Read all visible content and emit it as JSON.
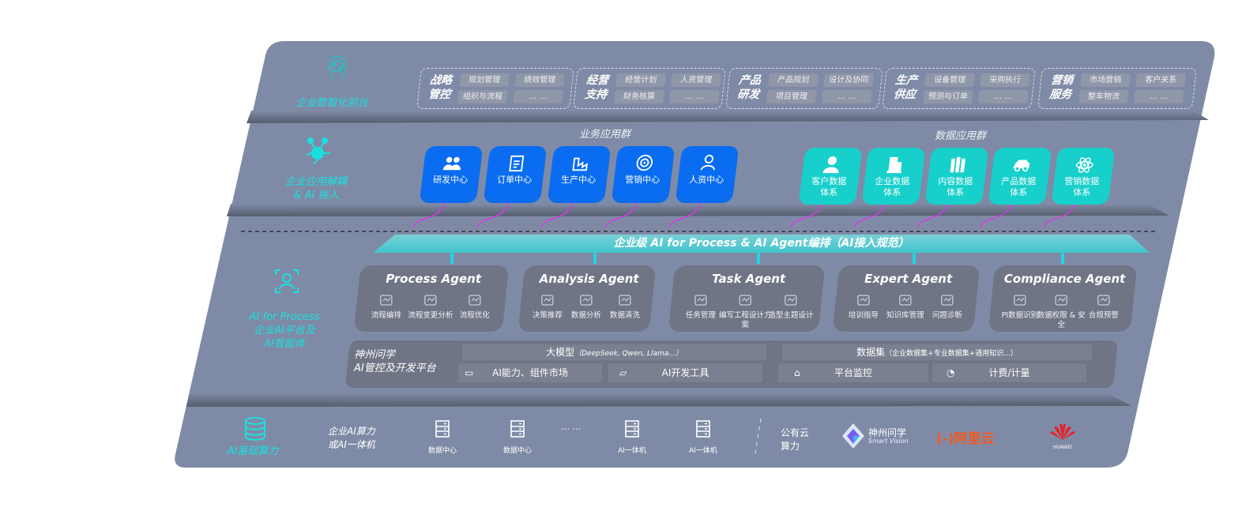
{
  "colors": {
    "panel": "#7f8ba6",
    "band": "#5e6678",
    "blue": "#0a6cf0",
    "teal": "#17cfcb",
    "accent": "#19e0e0",
    "arrow": "#d63be6"
  },
  "layer1": {
    "label": "企业数智化前台",
    "icon": "brain-icon",
    "groups": [
      {
        "title": "战略管控",
        "items": [
          "规划管理",
          "绩效管理",
          "组织与流程",
          "… …"
        ]
      },
      {
        "title": "经营支持",
        "items": [
          "经营计划",
          "人资管理",
          "财务核算",
          "… …"
        ]
      },
      {
        "title": "产品研发",
        "items": [
          "产品规划",
          "设计及协同",
          "项目管理",
          "… …"
        ]
      },
      {
        "title": "生产供应",
        "items": [
          "设备管理",
          "采购执行",
          "预测与订单",
          "… …"
        ]
      },
      {
        "title": "营销服务",
        "items": [
          "市场营销",
          "客户关系",
          "整车物流",
          "… …"
        ]
      }
    ]
  },
  "layer2": {
    "label_line1": "企业应用解耦",
    "label_line2": "& AI 接入",
    "icon": "molecule-icon",
    "business_title": "业务应用群",
    "business_apps": [
      {
        "label": "研发中心",
        "icon": "team-icon"
      },
      {
        "label": "订单中心",
        "icon": "clipboard-icon"
      },
      {
        "label": "生产中心",
        "icon": "production-icon"
      },
      {
        "label": "营销中心",
        "icon": "target-icon"
      },
      {
        "label": "人资中心",
        "icon": "person-icon"
      }
    ],
    "data_title": "数据应用群",
    "data_apps": [
      {
        "label": "客户数据体系",
        "icon": "user-icon"
      },
      {
        "label": "企业数据体系",
        "icon": "building-icon"
      },
      {
        "label": "内容数据体系",
        "icon": "books-icon"
      },
      {
        "label": "产品数据体系",
        "icon": "car-icon"
      },
      {
        "label": "营销数据体系",
        "icon": "atom-icon"
      }
    ]
  },
  "banner": "企业级 AI for Process & AI Agent编排（AI接入规范）",
  "layer3": {
    "label_line1": "AI for Process",
    "label_line2": "企业AI平台及",
    "label_line3": "AI智能体",
    "icon": "face-scan-icon",
    "agents": [
      {
        "title": "Process Agent",
        "features": [
          "流程编排",
          "流程变更分析",
          "流程优化"
        ]
      },
      {
        "title": "Analysis Agent",
        "features": [
          "决策推荐",
          "数据分析",
          "数据清洗"
        ]
      },
      {
        "title": "Task Agent",
        "features": [
          "任务管理",
          "编写工程设计方案",
          "造型主题设计"
        ]
      },
      {
        "title": "Expert Agent",
        "features": [
          "培训指导",
          "知识库管理",
          "问题诊断"
        ]
      },
      {
        "title": "Compliance Agent",
        "features": [
          "PI数据识别",
          "数据权限 & 安全",
          "合规预警"
        ]
      }
    ],
    "platform": {
      "title_line1": "神州问学",
      "title_line2": "AI管控及开发平台",
      "model": "大模型",
      "model_note": "（DeepSeek, Qwen, Llama...）",
      "dataset": "数据集",
      "dataset_note": "（企业数据集+专业数据集+通用知识...）",
      "market": "AI能力、组件市场",
      "devtools": "AI开发工具",
      "monitor": "平台监控",
      "billing": "计费/计量"
    }
  },
  "layer4": {
    "label": "AI基础算力",
    "icon": "database-icon",
    "enterprise_line1": "企业AI算力",
    "enterprise_line2": "或AI一体机",
    "items": [
      "数据中心",
      "数据中心",
      "AI一体机",
      "AI一体机"
    ],
    "ellipsis": "… …",
    "public_line1": "公有云",
    "public_line2": "算力",
    "vendors": [
      {
        "name": "神州问学",
        "sub": "Smart Vision"
      },
      {
        "name": "阿里云",
        "mark": "(-)"
      },
      {
        "name": "HUAWEI"
      }
    ]
  }
}
